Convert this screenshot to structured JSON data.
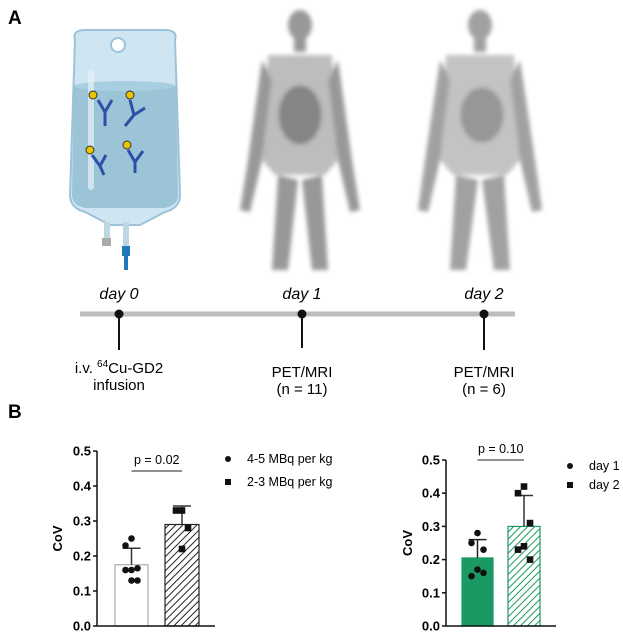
{
  "panels": {
    "a": "A",
    "b": "B"
  },
  "timeline": {
    "days": [
      "day 0",
      "day 1",
      "day 2"
    ],
    "events": [
      {
        "line1_pre": "i.v. ",
        "sup": "64",
        "line1_post": "Cu-GD2",
        "line2": "infusion"
      },
      {
        "line1": "PET/MRI",
        "line2": "(n = 11)"
      },
      {
        "line1": "PET/MRI",
        "line2": "(n = 6)"
      }
    ]
  },
  "colors": {
    "bag": "#a9d0e6",
    "antibody": "#2e4fa8",
    "green": "#1a9a62",
    "timeline": "#bdbdbd"
  },
  "chart_data": [
    {
      "type": "bar",
      "ylabel": "CoV",
      "ylim": [
        0,
        0.5
      ],
      "yticks": [
        "0.0",
        "0.1",
        "0.2",
        "0.3",
        "0.4",
        "0.5"
      ],
      "categories": [
        "4-5 MBq per kg",
        "2-3 MBq per kg"
      ],
      "values": [
        0.175,
        0.29
      ],
      "error_upper": [
        0.222,
        0.343
      ],
      "points": [
        [
          0.25,
          0.23,
          0.165,
          0.16,
          0.16,
          0.13,
          0.13
        ],
        [
          0.33,
          0.33,
          0.28,
          0.22
        ]
      ],
      "annotation": "p = 0.02",
      "legend": [
        "4-5 MBq per kg",
        "2-3 MBq per kg"
      ],
      "legend_placement": "right"
    },
    {
      "type": "bar",
      "ylabel": "CoV",
      "ylim": [
        0,
        0.5
      ],
      "yticks": [
        "0.0",
        "0.1",
        "0.2",
        "0.3",
        "0.4",
        "0.5"
      ],
      "categories": [
        "day 1",
        "day 2"
      ],
      "values": [
        0.205,
        0.3
      ],
      "error_upper": [
        0.26,
        0.393
      ],
      "points": [
        [
          0.28,
          0.25,
          0.23,
          0.17,
          0.15,
          0.16
        ],
        [
          0.42,
          0.4,
          0.31,
          0.24,
          0.23,
          0.2
        ]
      ],
      "annotation": "p = 0.10",
      "legend": [
        "day 1",
        "day 2"
      ],
      "legend_placement": "right"
    }
  ]
}
